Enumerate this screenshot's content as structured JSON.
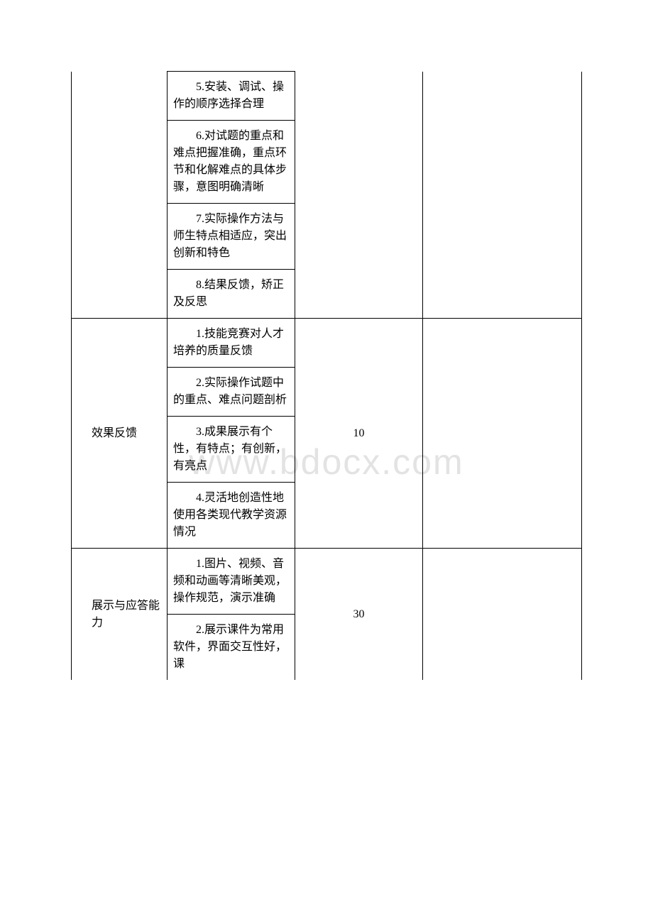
{
  "watermark": "www.bdocx.com",
  "rows": {
    "section1": {
      "items": [
        "5.安装、调试、操作的顺序选择合理",
        "6.对试题的重点和难点把握准确，重点环节和化解难点的具体步骤，意图明确清晰",
        "7.实际操作方法与师生特点相适应，突出创新和特色",
        "8.结果反馈，矫正及反思"
      ]
    },
    "section2": {
      "label": "效果反馈",
      "score": "10",
      "items": [
        "1.技能竞赛对人才培养的质量反馈",
        "2.实际操作试题中的重点、难点问题剖析",
        "3.成果展示有个性，有特点；有创新，有亮点",
        "4.灵活地创造性地使用各类现代教学资源情况"
      ]
    },
    "section3": {
      "label": "展示与应答能力",
      "score": "30",
      "items": [
        "1.图片、视频、音频和动画等清晰美观，操作规范，演示准确",
        "2.展示课件为常用软件，界面交互性好，课"
      ]
    }
  }
}
